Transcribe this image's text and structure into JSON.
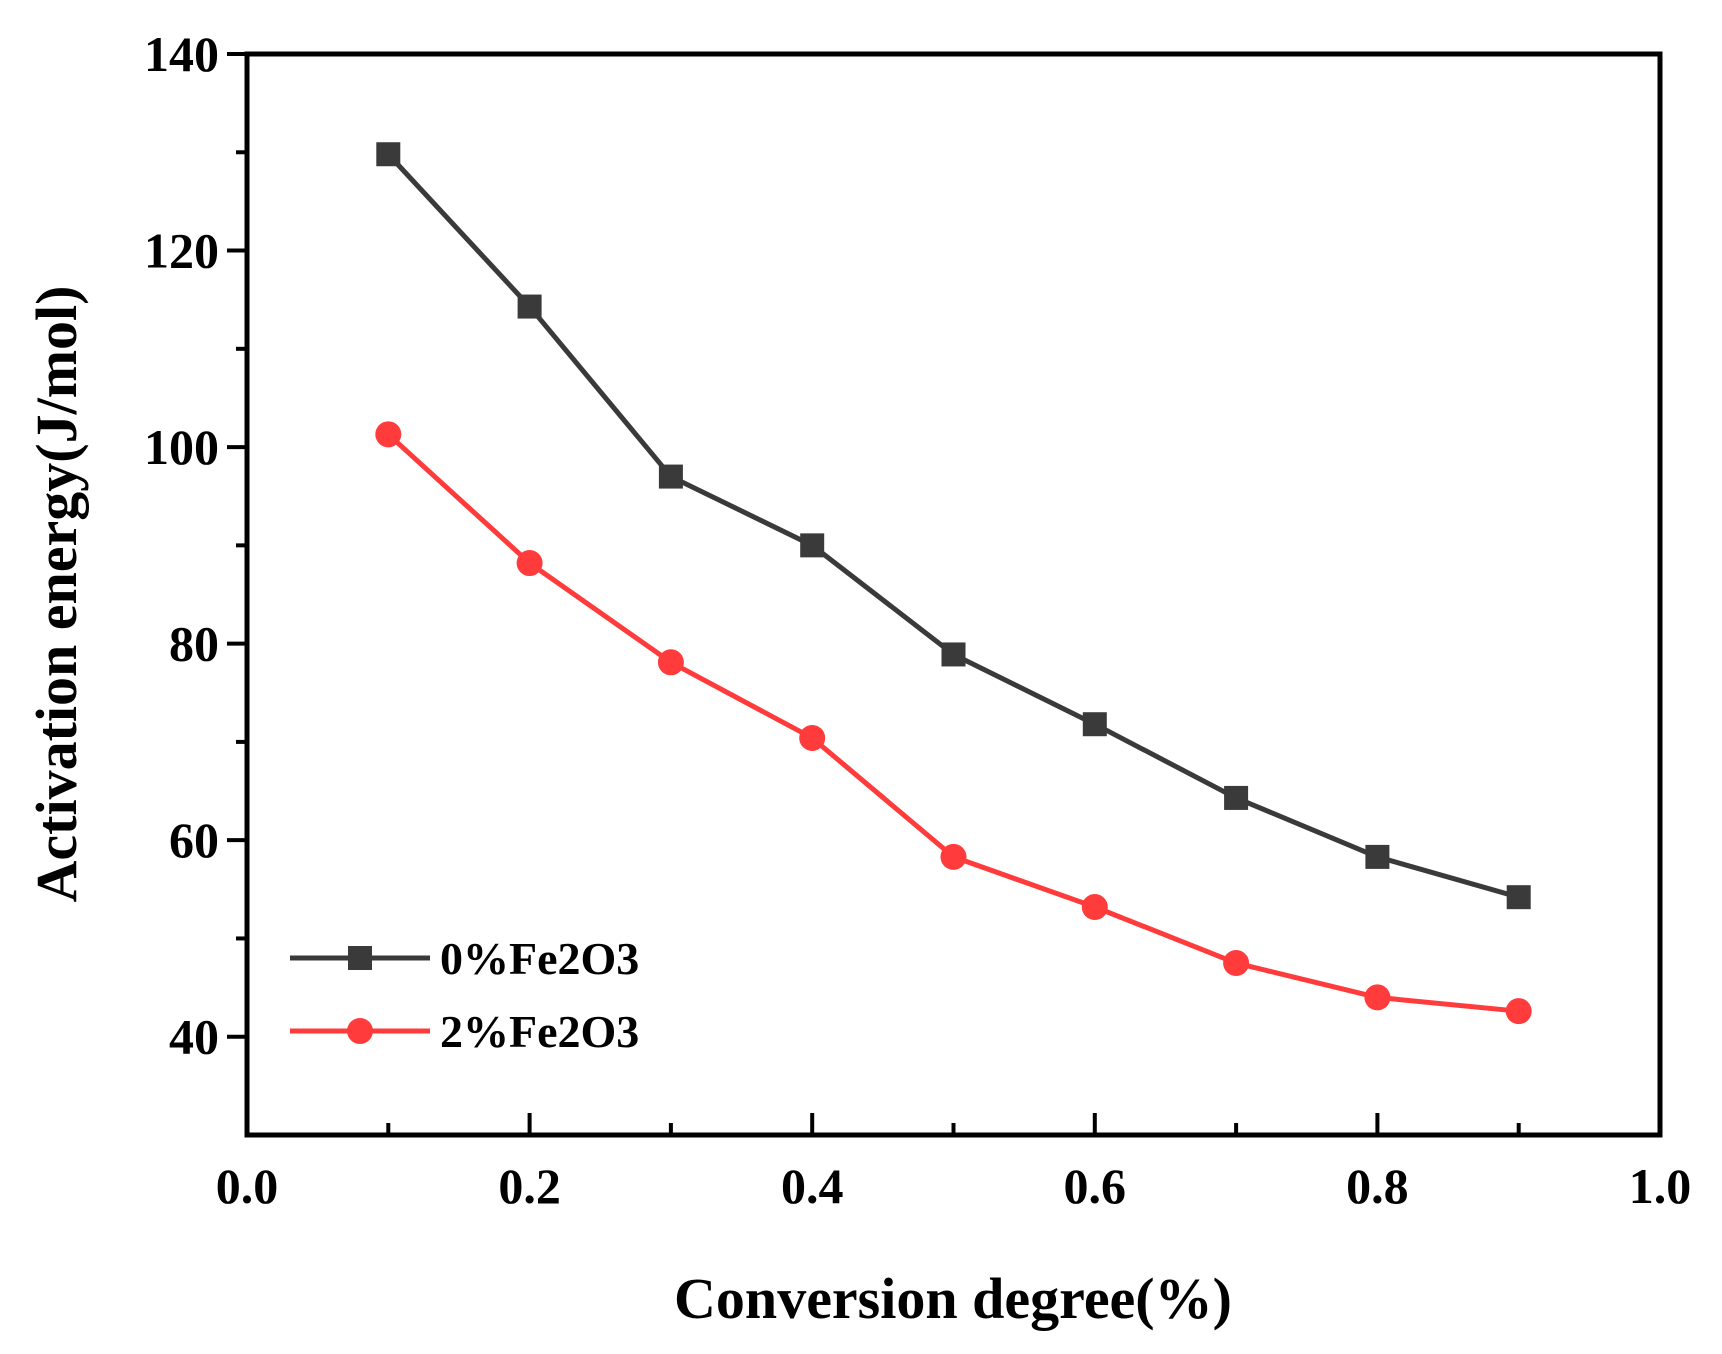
{
  "chart_data": {
    "type": "line",
    "title": "",
    "xlabel": "Conversion degree(%)",
    "ylabel": "Activation energy(J/mol)",
    "xlim": [
      0.0,
      1.0
    ],
    "ylim": [
      30,
      140
    ],
    "xticks": [
      "0.0",
      "0.2",
      "0.4",
      "0.6",
      "0.8",
      "1.0"
    ],
    "yticks": [
      "40",
      "60",
      "80",
      "100",
      "120",
      "140"
    ],
    "legend_position": "bottom-left",
    "x": [
      0.1,
      0.2,
      0.3,
      0.4,
      0.5,
      0.6,
      0.7,
      0.8,
      0.9
    ],
    "series": [
      {
        "name": "0%Fe2O3",
        "color": "#3a3a3a",
        "marker": "square",
        "values": [
          129.8,
          114.3,
          97.0,
          90.0,
          78.9,
          71.8,
          64.3,
          58.3,
          54.2
        ]
      },
      {
        "name": "2%Fe2O3",
        "color": "#ff3b3b",
        "marker": "circle",
        "values": [
          101.3,
          88.2,
          78.1,
          70.4,
          58.3,
          53.2,
          47.5,
          44.0,
          42.6
        ]
      }
    ]
  }
}
